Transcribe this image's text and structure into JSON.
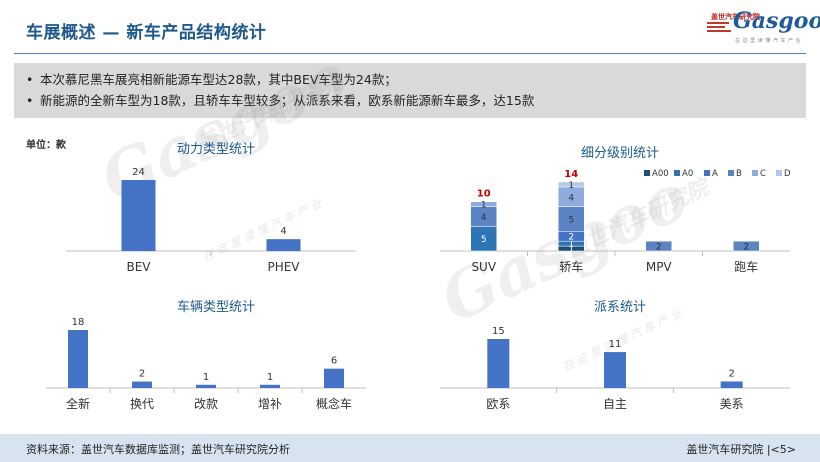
{
  "header": {
    "title": "车展概述 — 新车产品结构统计",
    "logo_text": "Gasgoo",
    "logo_subtext": "盖世汽车研究院",
    "logo_tagline": "在 这 里 读 懂 汽 车 产 业"
  },
  "summary": [
    "本次慕尼黑车展亮相新能源车型达28款，其中BEV车型为24款；",
    "新能源的全新车型为18款，且轿车车型较多；从派系来看，欧系新能源新车最多，达15款"
  ],
  "unit_label": "单位：款",
  "watermarks": [
    {
      "text": "Gasgoo",
      "sub": "盖世汽车研究院",
      "tag": "在 这 里 读 懂 汽 车 产 业"
    },
    {
      "text": "Gasgoo",
      "sub": "盖世汽车研究院",
      "tag": "在 这 里 读 懂 汽 车 产 业"
    }
  ],
  "colors": {
    "title": "#1f5a8c",
    "bar": "#4472c4",
    "seg_A00": "#1f4e79",
    "seg_A0": "#2e75b6",
    "seg_A": "#4472c4",
    "seg_B": "#5b84c4",
    "seg_C": "#8faadc",
    "seg_D": "#b4c7e7",
    "total_label": "#c00000"
  },
  "chart_data": [
    {
      "id": "power",
      "type": "bar",
      "title": "动力类型统计",
      "categories": [
        "BEV",
        "PHEV"
      ],
      "values": [
        24,
        4
      ],
      "ylim": [
        0,
        24
      ]
    },
    {
      "id": "segment",
      "type": "bar",
      "stacked": true,
      "title": "细分级别统计",
      "categories": [
        "SUV",
        "轿车",
        "MPV",
        "跑车"
      ],
      "series": [
        {
          "name": "A00",
          "values": [
            0,
            1,
            0,
            0
          ]
        },
        {
          "name": "A0",
          "values": [
            5,
            1,
            0,
            0
          ]
        },
        {
          "name": "A",
          "values": [
            0,
            2,
            0,
            0
          ]
        },
        {
          "name": "B",
          "values": [
            4,
            5,
            2,
            2
          ]
        },
        {
          "name": "C",
          "values": [
            1,
            4,
            0,
            0
          ]
        },
        {
          "name": "D",
          "values": [
            0,
            1,
            0,
            0
          ]
        }
      ],
      "totals": [
        10,
        14,
        null,
        null
      ],
      "legend": "top-right",
      "ylim": [
        0,
        14
      ]
    },
    {
      "id": "vehicle",
      "type": "bar",
      "title": "车辆类型统计",
      "categories": [
        "全新",
        "换代",
        "改款",
        "增补",
        "概念车"
      ],
      "values": [
        18,
        2,
        1,
        1,
        6
      ],
      "ylim": [
        0,
        18
      ]
    },
    {
      "id": "origin",
      "type": "bar",
      "title": "派系统计",
      "categories": [
        "欧系",
        "自主",
        "美系"
      ],
      "values": [
        15,
        11,
        2
      ],
      "ylim": [
        0,
        15
      ]
    }
  ],
  "footer": {
    "source": "资料来源：盖世汽车数据库监测；盖世汽车研究院分析",
    "page": "盖世汽车研究院 |<5>"
  }
}
